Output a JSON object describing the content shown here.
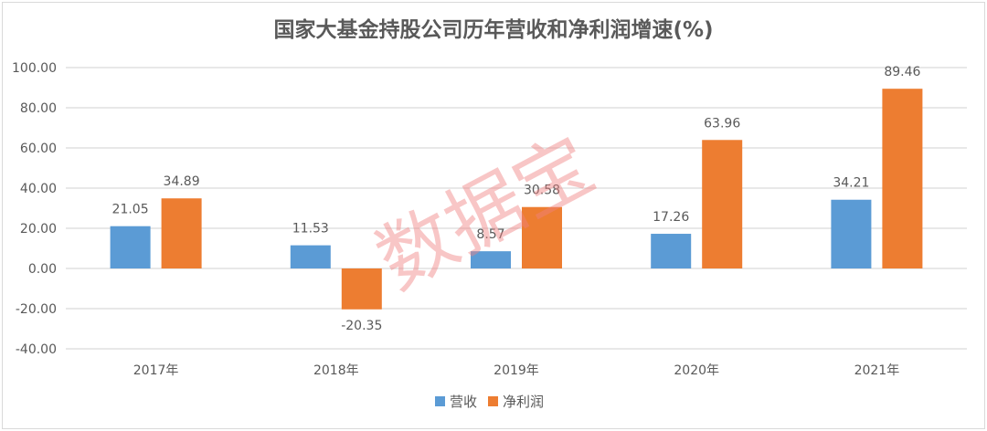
{
  "chart_data": {
    "type": "bar",
    "title": "国家大基金持股公司历年营收和净利润增速(%)",
    "categories": [
      "2017年",
      "2018年",
      "2019年",
      "2020年",
      "2021年"
    ],
    "series": [
      {
        "name": "营收",
        "color": "#5b9bd5",
        "values": [
          21.05,
          11.53,
          8.57,
          17.26,
          34.21
        ]
      },
      {
        "name": "净利润",
        "color": "#ed7d31",
        "values": [
          34.89,
          -20.35,
          30.58,
          63.96,
          89.46
        ]
      }
    ],
    "ylim": [
      -40,
      100
    ],
    "yticks": [
      -40,
      -20,
      0,
      20,
      40,
      60,
      80,
      100
    ],
    "grid": true,
    "legend": "bottom",
    "xlabel": "",
    "ylabel": ""
  },
  "watermark": "数据宝"
}
